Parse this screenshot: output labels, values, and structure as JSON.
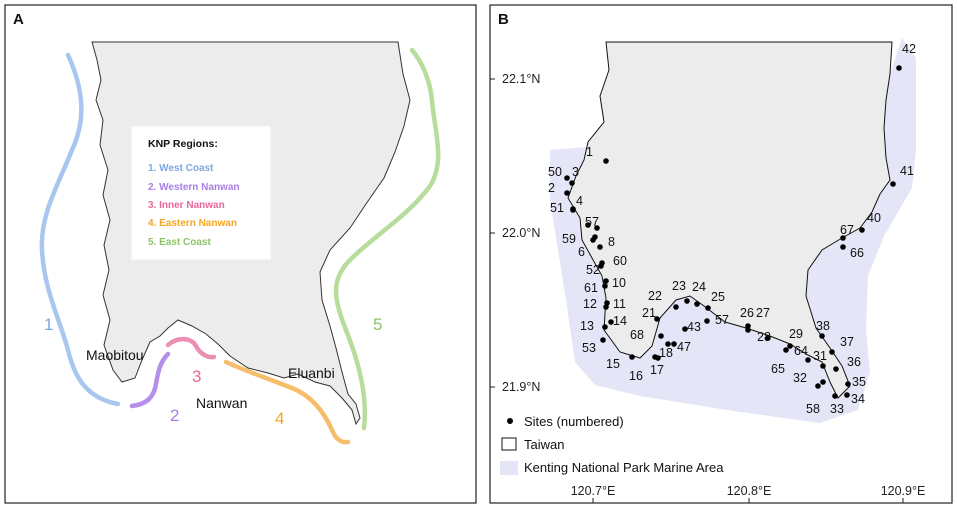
{
  "panel_a": {
    "label": "A",
    "legend": {
      "title": "KNP Regions:",
      "items": [
        {
          "text": "1. West Coast",
          "color": "#7ea6e0"
        },
        {
          "text": "2. Western Nanwan",
          "color": "#a77fe3"
        },
        {
          "text": "3. Inner Nanwan",
          "color": "#e8679a"
        },
        {
          "text": "4. Eastern Nanwan",
          "color": "#f5a623"
        },
        {
          "text": "5. East Coast",
          "color": "#8cc56a"
        }
      ]
    },
    "region_numbers": [
      "1",
      "2",
      "3",
      "4",
      "5"
    ],
    "region_colors": [
      "#a9c6ee",
      "#b590ea",
      "#ec8fb4",
      "#f6bd6a",
      "#b7dc9c"
    ],
    "place_names": {
      "maobitou": "Maobitou",
      "nanwan": "Nanwan",
      "eluanbi": "Eluanbi"
    }
  },
  "panel_b": {
    "label": "B",
    "y_ticks": [
      "22.1°N",
      "22.0°N",
      "21.9°N"
    ],
    "x_ticks": [
      "120.7°E",
      "120.8°E",
      "120.9°E"
    ],
    "sites": [
      "1",
      "2",
      "3",
      "4",
      "5",
      "6",
      "7",
      "8",
      "10",
      "11",
      "12",
      "13",
      "14",
      "15",
      "16",
      "17",
      "18",
      "21",
      "22",
      "23",
      "24",
      "25",
      "26",
      "27",
      "28",
      "29",
      "31",
      "32",
      "33",
      "34",
      "35",
      "36",
      "37",
      "38",
      "40",
      "41",
      "42",
      "43",
      "47",
      "50",
      "51",
      "52",
      "53",
      "57",
      "58",
      "59",
      "60",
      "61",
      "64",
      "65",
      "66",
      "67",
      "68"
    ],
    "legend": {
      "sites": "Sites (numbered)",
      "taiwan": "Taiwan",
      "marine": "Kenting National Park Marine Area"
    },
    "colors": {
      "marine_area": "#e4e6f7",
      "land": "#ececec",
      "coastline": "#111111"
    }
  }
}
